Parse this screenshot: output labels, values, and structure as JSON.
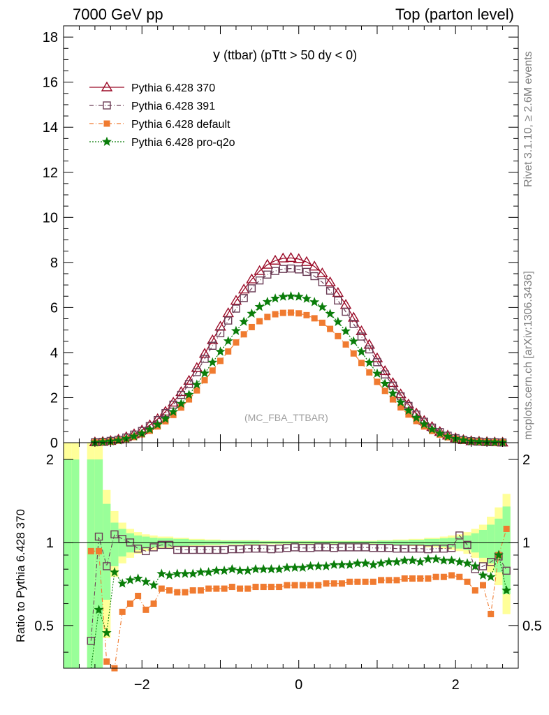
{
  "header": {
    "left": "7000 GeV pp",
    "right": "Top (parton level)"
  },
  "plot_title": {
    "main": "y",
    "rest": "(ttbar) (pTtt > 50 dy < 0)"
  },
  "watermark": "(MC_FBA_TTBAR)",
  "side_text": {
    "rivet": "Rivet 3.1.10, ≥ 2.6M events",
    "mcplots": "mcplots.cern.ch [arXiv:1306.3436]"
  },
  "ratio_ylabel": "Ratio to Pythia 6.428 370",
  "chart_data": {
    "type": "line",
    "main_panel": {
      "xlim": [
        -3.0,
        2.8
      ],
      "ylim": [
        0,
        18.5
      ],
      "yticks": [
        "0",
        "2",
        "4",
        "6",
        "8",
        "10",
        "12",
        "14",
        "16",
        "18"
      ],
      "x": [
        -2.6,
        -2.5,
        -2.4,
        -2.3,
        -2.2,
        -2.1,
        -2.0,
        -1.9,
        -1.8,
        -1.7,
        -1.6,
        -1.5,
        -1.4,
        -1.3,
        -1.2,
        -1.1,
        -1.0,
        -0.9,
        -0.8,
        -0.7,
        -0.6,
        -0.5,
        -0.4,
        -0.3,
        -0.2,
        -0.1,
        0.0,
        0.1,
        0.2,
        0.3,
        0.4,
        0.5,
        0.6,
        0.7,
        0.8,
        0.9,
        1.0,
        1.1,
        1.2,
        1.3,
        1.4,
        1.5,
        1.6,
        1.7,
        1.8,
        1.9,
        2.0,
        2.1,
        2.2,
        2.3,
        2.4,
        2.5,
        2.6
      ],
      "series": [
        {
          "name": "Pythia 6.428 370",
          "color": "#9b0a27",
          "marker": "triangle-open",
          "values": [
            0.02,
            0.04,
            0.08,
            0.14,
            0.25,
            0.38,
            0.55,
            0.78,
            1.05,
            1.38,
            1.78,
            2.25,
            2.75,
            3.32,
            3.95,
            4.55,
            5.15,
            5.75,
            6.3,
            6.8,
            7.25,
            7.62,
            7.9,
            8.08,
            8.18,
            8.2,
            8.15,
            8.02,
            7.82,
            7.52,
            7.12,
            6.65,
            6.12,
            5.55,
            4.95,
            4.35,
            3.75,
            3.18,
            2.65,
            2.15,
            1.7,
            1.3,
            0.97,
            0.7,
            0.48,
            0.32,
            0.2,
            0.12,
            0.07,
            0.05,
            0.03,
            0.02,
            0.01
          ]
        },
        {
          "name": "Pythia 6.428 391",
          "color": "#6b3d56",
          "marker": "square-open",
          "values": [
            0.02,
            0.04,
            0.08,
            0.13,
            0.23,
            0.36,
            0.52,
            0.74,
            1.0,
            1.31,
            1.69,
            2.12,
            2.6,
            3.13,
            3.72,
            4.3,
            4.86,
            5.42,
            5.95,
            6.42,
            6.85,
            7.2,
            7.46,
            7.62,
            7.71,
            7.73,
            7.69,
            7.58,
            7.39,
            7.12,
            6.75,
            6.31,
            5.81,
            5.27,
            4.71,
            4.14,
            3.57,
            3.03,
            2.53,
            2.06,
            1.63,
            1.25,
            0.93,
            0.67,
            0.47,
            0.31,
            0.2,
            0.12,
            0.07,
            0.05,
            0.03,
            0.02,
            0.01
          ]
        },
        {
          "name": "Pythia 6.428 default",
          "color": "#f07b30",
          "marker": "square-filled",
          "values": [
            0.01,
            0.03,
            0.05,
            0.09,
            0.16,
            0.25,
            0.37,
            0.53,
            0.72,
            0.95,
            1.23,
            1.56,
            1.92,
            2.32,
            2.77,
            3.2,
            3.63,
            4.05,
            4.45,
            4.81,
            5.13,
            5.39,
            5.58,
            5.7,
            5.76,
            5.77,
            5.74,
            5.66,
            5.52,
            5.32,
            5.05,
            4.73,
            4.36,
            3.96,
            3.54,
            3.12,
            2.7,
            2.3,
            1.92,
            1.57,
            1.25,
            0.96,
            0.72,
            0.52,
            0.36,
            0.24,
            0.16,
            0.1,
            0.06,
            0.04,
            0.02,
            0.01,
            0.01
          ]
        },
        {
          "name": "Pythia 6.428 pro-q2o",
          "color": "#0a7d0a",
          "marker": "star-filled",
          "values": [
            0.01,
            0.03,
            0.06,
            0.1,
            0.18,
            0.28,
            0.41,
            0.59,
            0.8,
            1.06,
            1.37,
            1.73,
            2.13,
            2.58,
            3.08,
            3.56,
            4.04,
            4.51,
            4.96,
            5.37,
            5.73,
            6.03,
            6.25,
            6.4,
            6.48,
            6.5,
            6.48,
            6.39,
            6.24,
            6.02,
            5.72,
            5.36,
            4.95,
            4.5,
            4.03,
            3.55,
            3.07,
            2.62,
            2.19,
            1.79,
            1.42,
            1.1,
            0.82,
            0.59,
            0.41,
            0.27,
            0.17,
            0.11,
            0.06,
            0.04,
            0.03,
            0.02,
            0.01
          ]
        }
      ]
    },
    "ratio_panel": {
      "xlim": [
        -3.0,
        2.8
      ],
      "ylim": [
        0.35,
        2.3
      ],
      "yscale": "log",
      "yticks": [
        "0.5",
        "1",
        "2"
      ],
      "xticks": [
        "−2",
        "0",
        "2"
      ],
      "reference_line": 1,
      "band_x": [
        -3.0,
        -2.9,
        -2.8,
        -2.7,
        -2.6,
        -2.5,
        -2.4,
        -2.3,
        -2.2,
        -2.1,
        -2.0,
        -1.9,
        -1.8,
        -1.6,
        -1.4,
        -1.2,
        -1.0,
        -0.5,
        0.0,
        0.5,
        1.0,
        1.2,
        1.4,
        1.6,
        1.8,
        1.9,
        2.0,
        2.1,
        2.2,
        2.3,
        2.4,
        2.5,
        2.6,
        2.7
      ],
      "band_yellow": [
        [
          0.3,
          2.3
        ],
        [
          0.3,
          2.3
        ],
        [
          0.3,
          0.3
        ],
        [
          0.3,
          2.3
        ],
        [
          0.3,
          2.3
        ],
        [
          0.45,
          1.55
        ],
        [
          0.75,
          1.3
        ],
        [
          0.84,
          1.18
        ],
        [
          0.88,
          1.12
        ],
        [
          0.91,
          1.09
        ],
        [
          0.93,
          1.07
        ],
        [
          0.94,
          1.06
        ],
        [
          0.95,
          1.05
        ],
        [
          0.96,
          1.04
        ],
        [
          0.97,
          1.03
        ],
        [
          0.975,
          1.025
        ],
        [
          0.98,
          1.02
        ],
        [
          0.985,
          1.015
        ],
        [
          0.985,
          1.015
        ],
        [
          0.985,
          1.015
        ],
        [
          0.98,
          1.02
        ],
        [
          0.975,
          1.025
        ],
        [
          0.97,
          1.03
        ],
        [
          0.96,
          1.04
        ],
        [
          0.95,
          1.05
        ],
        [
          0.94,
          1.06
        ],
        [
          0.93,
          1.07
        ],
        [
          0.91,
          1.09
        ],
        [
          0.88,
          1.12
        ],
        [
          0.84,
          1.16
        ],
        [
          0.78,
          1.24
        ],
        [
          0.7,
          1.34
        ],
        [
          0.55,
          1.5
        ],
        [
          0.3,
          1.9
        ]
      ],
      "band_green": [
        [
          0.3,
          2.0
        ],
        [
          0.3,
          2.0
        ],
        [
          0.3,
          0.3
        ],
        [
          0.3,
          2.0
        ],
        [
          0.3,
          2.0
        ],
        [
          0.62,
          1.38
        ],
        [
          0.82,
          1.18
        ],
        [
          0.89,
          1.12
        ],
        [
          0.92,
          1.08
        ],
        [
          0.94,
          1.06
        ],
        [
          0.95,
          1.05
        ],
        [
          0.96,
          1.04
        ],
        [
          0.965,
          1.035
        ],
        [
          0.97,
          1.03
        ],
        [
          0.978,
          1.022
        ],
        [
          0.982,
          1.018
        ],
        [
          0.985,
          1.015
        ],
        [
          0.99,
          1.01
        ],
        [
          0.99,
          1.01
        ],
        [
          0.99,
          1.01
        ],
        [
          0.985,
          1.015
        ],
        [
          0.982,
          1.018
        ],
        [
          0.978,
          1.022
        ],
        [
          0.97,
          1.03
        ],
        [
          0.965,
          1.035
        ],
        [
          0.96,
          1.04
        ],
        [
          0.95,
          1.05
        ],
        [
          0.94,
          1.06
        ],
        [
          0.92,
          1.08
        ],
        [
          0.88,
          1.11
        ],
        [
          0.84,
          1.16
        ],
        [
          0.78,
          1.22
        ],
        [
          0.65,
          1.35
        ],
        [
          0.3,
          1.55
        ]
      ],
      "x": [
        -2.65,
        -2.55,
        -2.45,
        -2.35,
        -2.25,
        -2.15,
        -2.05,
        -1.95,
        -1.85,
        -1.75,
        -1.65,
        -1.55,
        -1.45,
        -1.35,
        -1.25,
        -1.15,
        -1.05,
        -0.95,
        -0.85,
        -0.75,
        -0.65,
        -0.55,
        -0.45,
        -0.35,
        -0.25,
        -0.15,
        -0.05,
        0.05,
        0.15,
        0.25,
        0.35,
        0.45,
        0.55,
        0.65,
        0.75,
        0.85,
        0.95,
        1.05,
        1.15,
        1.25,
        1.35,
        1.45,
        1.55,
        1.65,
        1.75,
        1.85,
        1.95,
        2.05,
        2.15,
        2.25,
        2.35,
        2.45,
        2.55,
        2.65
      ],
      "series": [
        {
          "name": "Pythia 6.428 391",
          "values": [
            0.44,
            1.05,
            0.82,
            1.07,
            1.03,
            1.0,
            0.95,
            0.93,
            0.96,
            0.98,
            0.98,
            0.94,
            0.94,
            0.94,
            0.94,
            0.94,
            0.94,
            0.94,
            0.945,
            0.945,
            0.95,
            0.95,
            0.95,
            0.945,
            0.95,
            0.955,
            0.96,
            0.955,
            0.955,
            0.96,
            0.96,
            0.955,
            0.96,
            0.96,
            0.96,
            0.96,
            0.955,
            0.955,
            0.955,
            0.95,
            0.95,
            0.95,
            0.95,
            0.945,
            0.95,
            0.95,
            0.955,
            1.06,
            0.98,
            0.8,
            0.82,
            0.85,
            0.89,
            0.79
          ]
        },
        {
          "name": "Pythia 6.428 default",
          "values": [
            0.93,
            0.93,
            0.37,
            0.35,
            0.56,
            0.6,
            0.64,
            0.57,
            0.6,
            0.68,
            0.67,
            0.66,
            0.66,
            0.67,
            0.67,
            0.68,
            0.68,
            0.68,
            0.69,
            0.68,
            0.68,
            0.69,
            0.69,
            0.69,
            0.69,
            0.7,
            0.7,
            0.7,
            0.7,
            0.7,
            0.71,
            0.71,
            0.71,
            0.72,
            0.72,
            0.72,
            0.72,
            0.73,
            0.73,
            0.73,
            0.74,
            0.74,
            0.74,
            0.74,
            0.75,
            0.75,
            0.76,
            0.75,
            0.72,
            0.67,
            0.7,
            0.55,
            0.9,
            1.12
          ]
        },
        {
          "name": "Pythia 6.428 pro-q2o",
          "values": [
            0.08,
            0.57,
            0.47,
            0.78,
            0.71,
            0.73,
            0.74,
            0.72,
            0.7,
            0.77,
            0.76,
            0.77,
            0.77,
            0.77,
            0.78,
            0.78,
            0.79,
            0.79,
            0.8,
            0.79,
            0.79,
            0.8,
            0.8,
            0.8,
            0.8,
            0.81,
            0.81,
            0.81,
            0.82,
            0.82,
            0.82,
            0.83,
            0.83,
            0.83,
            0.84,
            0.84,
            0.83,
            0.84,
            0.85,
            0.85,
            0.86,
            0.86,
            0.85,
            0.87,
            0.87,
            0.86,
            0.86,
            0.85,
            0.84,
            0.82,
            0.76,
            0.75,
            0.9,
            0.67
          ]
        }
      ]
    }
  }
}
